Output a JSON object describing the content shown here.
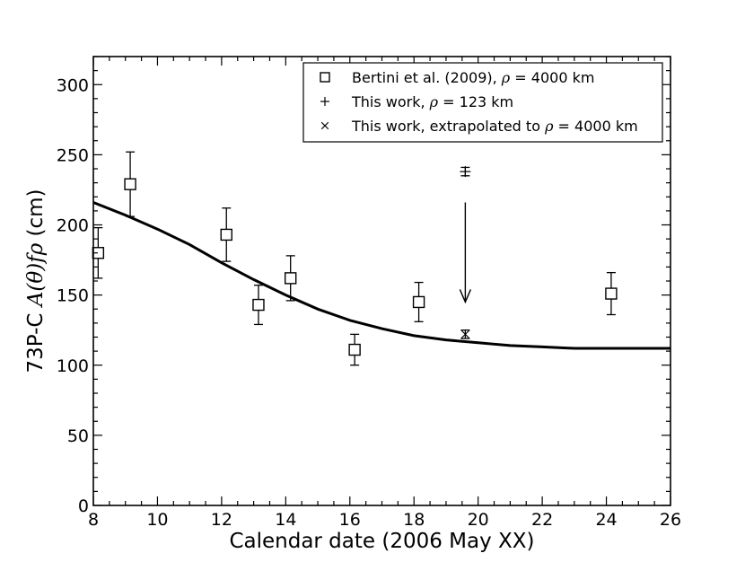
{
  "chart_data": {
    "type": "scatter",
    "xlabel": "Calendar date (2006 May XX)",
    "ylabel_prefix": "73P-C ",
    "ylabel_math": "A(θ)fρ",
    "ylabel_suffix": " (cm)",
    "xlim": [
      8,
      26
    ],
    "ylim": [
      0,
      320
    ],
    "xticks": [
      8,
      10,
      12,
      14,
      16,
      18,
      20,
      22,
      24,
      26
    ],
    "yticks": [
      0,
      50,
      100,
      150,
      200,
      250,
      300
    ],
    "legend_position": "top-right",
    "legend": [
      {
        "marker": "square",
        "pre": "Bertini et al. (2009), ",
        "sym": "ρ",
        "post": " = 4000 km"
      },
      {
        "marker": "plus",
        "pre": "This work, ",
        "sym": "ρ",
        "post": " = 123 km"
      },
      {
        "marker": "cross",
        "pre": "This work, extrapolated to ",
        "sym": "ρ",
        "post": " = 4000 km"
      }
    ],
    "series": [
      {
        "marker": "square",
        "points": [
          {
            "x": 8.15,
            "y": 180,
            "err": 18
          },
          {
            "x": 9.15,
            "y": 229,
            "err": 23
          },
          {
            "x": 12.15,
            "y": 193,
            "err": 19
          },
          {
            "x": 13.15,
            "y": 143,
            "err": 14
          },
          {
            "x": 14.15,
            "y": 162,
            "err": 16
          },
          {
            "x": 16.15,
            "y": 111,
            "err": 11
          },
          {
            "x": 18.15,
            "y": 145,
            "err": 14
          },
          {
            "x": 24.15,
            "y": 151,
            "err": 15
          }
        ]
      },
      {
        "marker": "plus",
        "points": [
          {
            "x": 19.6,
            "y": 238,
            "err": 3
          }
        ]
      },
      {
        "marker": "cross",
        "points": [
          {
            "x": 19.6,
            "y": 122,
            "err": 3
          }
        ]
      }
    ],
    "fit_curve": {
      "x": [
        8,
        9,
        10,
        11,
        12,
        13,
        14,
        15,
        16,
        17,
        18,
        19,
        20,
        21,
        22,
        23,
        24,
        25,
        26
      ],
      "y": [
        216,
        207,
        197,
        186,
        173,
        161,
        150,
        140,
        132,
        126,
        121,
        118,
        116,
        114,
        113,
        112,
        112,
        112,
        112
      ]
    },
    "annotation_arrow": {
      "x": 19.6,
      "y_start": 216,
      "y_end": 145
    }
  }
}
